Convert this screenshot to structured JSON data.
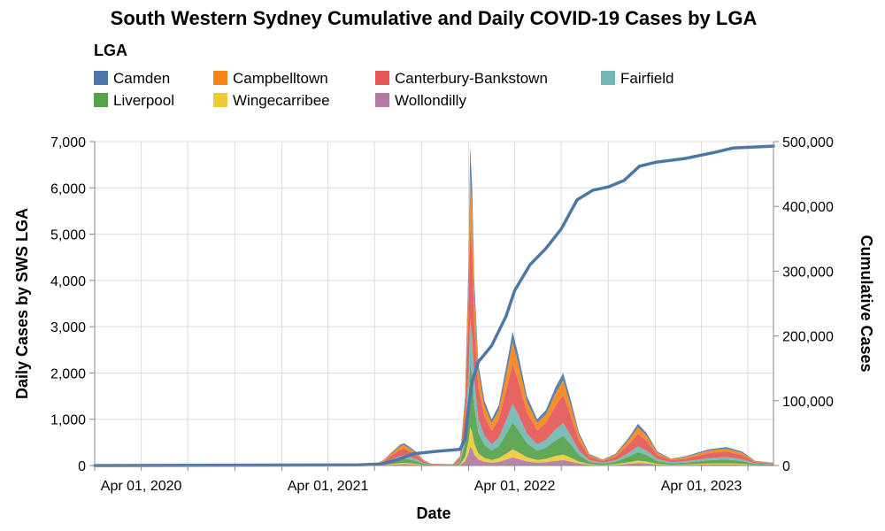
{
  "chart_data": {
    "type": "area",
    "title": "South Western Sydney Cumulative and Daily COVID-19 Cases by LGA",
    "legend": {
      "title": "LGA",
      "placement": "top-left",
      "entries": [
        "Camden",
        "Campbelltown",
        "Canterbury-Bankstown",
        "Fairfield",
        "Liverpool",
        "Wingecarribee",
        "Wollondilly"
      ]
    },
    "colors": {
      "Camden": "#4c78a8",
      "Campbelltown": "#f58518",
      "Canterbury-Bankstown": "#e45756",
      "Fairfield": "#72b7b2",
      "Liverpool": "#54a24b",
      "Wingecarribee": "#eeca3b",
      "Wollondilly": "#b279a2",
      "cumulative_line": "#4c78a8"
    },
    "x_axis": {
      "title": "Date",
      "range": [
        "2020-01-01",
        "2023-08-20"
      ],
      "tick_labels": [
        {
          "date": "2020-04-01",
          "label": "Apr 01, 2020"
        },
        {
          "date": "2021-04-01",
          "label": "Apr 01, 2021"
        },
        {
          "date": "2022-04-01",
          "label": "Apr 01, 2022"
        },
        {
          "date": "2023-04-01",
          "label": "Apr 01, 2023"
        }
      ],
      "minor_ticks": [
        "2020-01-01",
        "2020-07-01",
        "2020-10-01",
        "2021-01-01",
        "2021-07-01",
        "2021-10-01",
        "2022-01-01",
        "2022-07-01",
        "2022-10-01",
        "2023-01-01",
        "2023-07-01"
      ]
    },
    "y_left": {
      "title": "Daily Cases by SWS LGA",
      "range": [
        0,
        7000
      ],
      "ticks": [
        0,
        1000,
        2000,
        3000,
        4000,
        5000,
        6000,
        7000
      ],
      "tick_labels": [
        "0",
        "1,000",
        "2,000",
        "3,000",
        "4,000",
        "5,000",
        "6,000",
        "7,000"
      ]
    },
    "y_right": {
      "title": "Cumulative Cases",
      "range": [
        0,
        500000
      ],
      "ticks": [
        0,
        100000,
        200000,
        300000,
        400000,
        500000
      ],
      "tick_labels": [
        "0",
        "100,000",
        "200,000",
        "300,000",
        "400,000",
        "500,000"
      ]
    },
    "grid": true,
    "daily_total": [
      {
        "date": "2020-01-01",
        "value": 0
      },
      {
        "date": "2021-06-01",
        "value": 0
      },
      {
        "date": "2021-07-01",
        "value": 20
      },
      {
        "date": "2021-07-20",
        "value": 130
      },
      {
        "date": "2021-08-05",
        "value": 300
      },
      {
        "date": "2021-08-20",
        "value": 450
      },
      {
        "date": "2021-08-28",
        "value": 480
      },
      {
        "date": "2021-09-08",
        "value": 400
      },
      {
        "date": "2021-09-20",
        "value": 300
      },
      {
        "date": "2021-10-05",
        "value": 120
      },
      {
        "date": "2021-10-20",
        "value": 40
      },
      {
        "date": "2021-12-01",
        "value": 30
      },
      {
        "date": "2021-12-15",
        "value": 200
      },
      {
        "date": "2021-12-25",
        "value": 1500
      },
      {
        "date": "2022-01-01",
        "value": 4500
      },
      {
        "date": "2022-01-04",
        "value": 6900
      },
      {
        "date": "2022-01-08",
        "value": 6000
      },
      {
        "date": "2022-01-12",
        "value": 4000
      },
      {
        "date": "2022-01-20",
        "value": 2200
      },
      {
        "date": "2022-02-01",
        "value": 1400
      },
      {
        "date": "2022-02-15",
        "value": 1000
      },
      {
        "date": "2022-03-01",
        "value": 1300
      },
      {
        "date": "2022-03-20",
        "value": 2400
      },
      {
        "date": "2022-03-28",
        "value": 2900
      },
      {
        "date": "2022-04-08",
        "value": 2400
      },
      {
        "date": "2022-04-25",
        "value": 1500
      },
      {
        "date": "2022-05-15",
        "value": 1000
      },
      {
        "date": "2022-06-01",
        "value": 1200
      },
      {
        "date": "2022-06-20",
        "value": 1700
      },
      {
        "date": "2022-07-05",
        "value": 2000
      },
      {
        "date": "2022-07-20",
        "value": 1400
      },
      {
        "date": "2022-08-05",
        "value": 700
      },
      {
        "date": "2022-08-25",
        "value": 250
      },
      {
        "date": "2022-09-20",
        "value": 130
      },
      {
        "date": "2022-10-15",
        "value": 250
      },
      {
        "date": "2022-11-10",
        "value": 600
      },
      {
        "date": "2022-11-28",
        "value": 900
      },
      {
        "date": "2022-12-15",
        "value": 700
      },
      {
        "date": "2023-01-05",
        "value": 300
      },
      {
        "date": "2023-02-01",
        "value": 150
      },
      {
        "date": "2023-03-01",
        "value": 200
      },
      {
        "date": "2023-04-15",
        "value": 350
      },
      {
        "date": "2023-05-20",
        "value": 400
      },
      {
        "date": "2023-06-20",
        "value": 300
      },
      {
        "date": "2023-07-15",
        "value": 100
      },
      {
        "date": "2023-08-20",
        "value": 60
      }
    ],
    "lga_share": {
      "Camden": 0.08,
      "Campbelltown": 0.16,
      "Canterbury-Bankstown": 0.3,
      "Fairfield": 0.14,
      "Liverpool": 0.2,
      "Wingecarribee": 0.06,
      "Wollondilly": 0.06
    },
    "cumulative": [
      {
        "date": "2020-01-01",
        "value": 0
      },
      {
        "date": "2021-06-01",
        "value": 1000
      },
      {
        "date": "2021-07-15",
        "value": 2500
      },
      {
        "date": "2021-08-15",
        "value": 9000
      },
      {
        "date": "2021-09-15",
        "value": 18000
      },
      {
        "date": "2021-11-01",
        "value": 22000
      },
      {
        "date": "2021-12-15",
        "value": 25000
      },
      {
        "date": "2021-12-25",
        "value": 40000
      },
      {
        "date": "2022-01-01",
        "value": 90000
      },
      {
        "date": "2022-01-08",
        "value": 130000
      },
      {
        "date": "2022-01-20",
        "value": 160000
      },
      {
        "date": "2022-02-15",
        "value": 185000
      },
      {
        "date": "2022-03-15",
        "value": 230000
      },
      {
        "date": "2022-04-01",
        "value": 270000
      },
      {
        "date": "2022-05-01",
        "value": 310000
      },
      {
        "date": "2022-06-01",
        "value": 335000
      },
      {
        "date": "2022-07-01",
        "value": 365000
      },
      {
        "date": "2022-08-01",
        "value": 410000
      },
      {
        "date": "2022-09-01",
        "value": 425000
      },
      {
        "date": "2022-10-01",
        "value": 430000
      },
      {
        "date": "2022-11-01",
        "value": 440000
      },
      {
        "date": "2022-12-01",
        "value": 462000
      },
      {
        "date": "2023-01-01",
        "value": 468000
      },
      {
        "date": "2023-03-01",
        "value": 474000
      },
      {
        "date": "2023-05-01",
        "value": 484000
      },
      {
        "date": "2023-06-01",
        "value": 490000
      },
      {
        "date": "2023-08-20",
        "value": 493000
      }
    ]
  }
}
